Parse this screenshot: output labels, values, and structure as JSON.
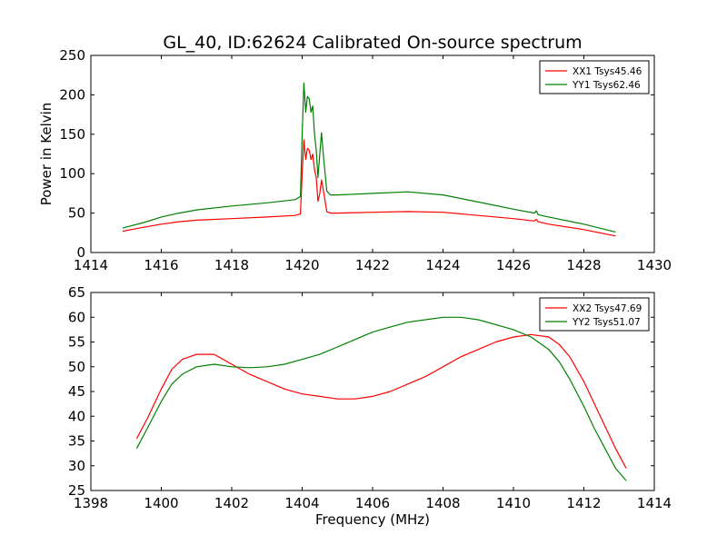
{
  "figure": {
    "title": "GL_40, ID:62624 Calibrated On-source spectrum"
  },
  "chart_data": [
    {
      "type": "line",
      "title": "GL_40, ID:62624 Calibrated On-source spectrum",
      "xlabel": "",
      "ylabel": "Power in Kelvin",
      "xlim": [
        1414,
        1430
      ],
      "ylim": [
        0,
        250
      ],
      "xticks": [
        "1414",
        "1416",
        "1418",
        "1420",
        "1422",
        "1424",
        "1426",
        "1428",
        "1430"
      ],
      "yticks": [
        "0",
        "50",
        "100",
        "150",
        "200",
        "250"
      ],
      "legend_position": "top-right",
      "grid": false,
      "series": [
        {
          "name": "XX1 Tsys45.46",
          "color": "#ff0000",
          "x": [
            1414.9,
            1415.5,
            1416.0,
            1416.5,
            1417.0,
            1418.0,
            1419.0,
            1419.8,
            1419.95,
            1420.0,
            1420.05,
            1420.1,
            1420.15,
            1420.2,
            1420.25,
            1420.3,
            1420.35,
            1420.4,
            1420.45,
            1420.5,
            1420.55,
            1420.6,
            1420.7,
            1420.8,
            1421.0,
            1422.0,
            1423.0,
            1424.0,
            1425.0,
            1426.0,
            1426.6,
            1426.65,
            1426.7,
            1427.0,
            1428.0,
            1428.9
          ],
          "y": [
            27,
            32,
            36,
            39,
            41,
            43,
            45,
            47,
            49,
            100,
            143,
            118,
            132,
            130,
            118,
            125,
            105,
            95,
            65,
            75,
            92,
            80,
            52,
            50,
            50,
            51,
            52,
            51,
            47,
            43,
            40,
            42,
            39,
            36,
            29,
            21
          ]
        },
        {
          "name": "YY1 Tsys62.46",
          "color": "#008000",
          "x": [
            1414.9,
            1415.5,
            1416.0,
            1416.5,
            1417.0,
            1418.0,
            1419.0,
            1419.8,
            1419.95,
            1420.0,
            1420.05,
            1420.1,
            1420.15,
            1420.2,
            1420.25,
            1420.3,
            1420.35,
            1420.4,
            1420.45,
            1420.5,
            1420.55,
            1420.6,
            1420.7,
            1420.8,
            1421.0,
            1422.0,
            1423.0,
            1424.0,
            1425.0,
            1426.0,
            1426.6,
            1426.65,
            1426.7,
            1427.0,
            1428.0,
            1428.9
          ],
          "y": [
            31,
            38,
            45,
            50,
            54,
            59,
            63,
            67,
            71,
            150,
            215,
            178,
            198,
            195,
            178,
            186,
            150,
            130,
            95,
            125,
            152,
            125,
            78,
            73,
            73,
            75,
            77,
            73,
            64,
            55,
            50,
            53,
            48,
            45,
            36,
            26
          ]
        }
      ]
    },
    {
      "type": "line",
      "title": "",
      "xlabel": "Frequency (MHz)",
      "ylabel": "",
      "xlim": [
        1398,
        1414
      ],
      "ylim": [
        25,
        65
      ],
      "xticks": [
        "1398",
        "1400",
        "1402",
        "1404",
        "1406",
        "1408",
        "1410",
        "1412",
        "1414"
      ],
      "yticks": [
        "25",
        "30",
        "35",
        "40",
        "45",
        "50",
        "55",
        "60",
        "65"
      ],
      "legend_position": "top-right",
      "grid": false,
      "series": [
        {
          "name": "XX2 Tsys47.69",
          "color": "#ff0000",
          "x": [
            1399.3,
            1399.6,
            1400.0,
            1400.3,
            1400.6,
            1401.0,
            1401.5,
            1402.0,
            1402.5,
            1403.0,
            1403.5,
            1404.0,
            1404.5,
            1405.0,
            1405.5,
            1406.0,
            1406.5,
            1407.0,
            1407.5,
            1408.0,
            1408.5,
            1409.0,
            1409.5,
            1410.0,
            1410.5,
            1411.0,
            1411.3,
            1411.6,
            1412.0,
            1412.3,
            1412.6,
            1412.9,
            1413.2
          ],
          "y": [
            35.5,
            39.5,
            45.5,
            49.5,
            51.5,
            52.5,
            52.5,
            50.5,
            48.5,
            47.0,
            45.5,
            44.5,
            44.0,
            43.5,
            43.5,
            44.0,
            45.0,
            46.5,
            48.0,
            50.0,
            52.0,
            53.5,
            55.0,
            56.0,
            56.5,
            56.0,
            54.5,
            52.0,
            47.0,
            42.5,
            38.0,
            33.5,
            29.5
          ]
        },
        {
          "name": "YY2 Tsys51.07",
          "color": "#008000",
          "x": [
            1399.3,
            1399.6,
            1400.0,
            1400.3,
            1400.6,
            1401.0,
            1401.5,
            1402.0,
            1402.5,
            1403.0,
            1403.5,
            1404.0,
            1404.5,
            1405.0,
            1405.5,
            1406.0,
            1406.5,
            1407.0,
            1407.5,
            1408.0,
            1408.5,
            1409.0,
            1409.5,
            1410.0,
            1410.5,
            1411.0,
            1411.3,
            1411.6,
            1412.0,
            1412.3,
            1412.6,
            1412.9,
            1413.2
          ],
          "y": [
            33.5,
            37.5,
            43.0,
            46.5,
            48.5,
            50.0,
            50.5,
            50.0,
            49.8,
            50.0,
            50.5,
            51.5,
            52.5,
            54.0,
            55.5,
            57.0,
            58.0,
            59.0,
            59.5,
            60.0,
            60.0,
            59.5,
            58.5,
            57.5,
            56.0,
            53.5,
            51.0,
            47.5,
            42.0,
            37.5,
            33.5,
            29.5,
            27.0
          ]
        }
      ]
    }
  ]
}
